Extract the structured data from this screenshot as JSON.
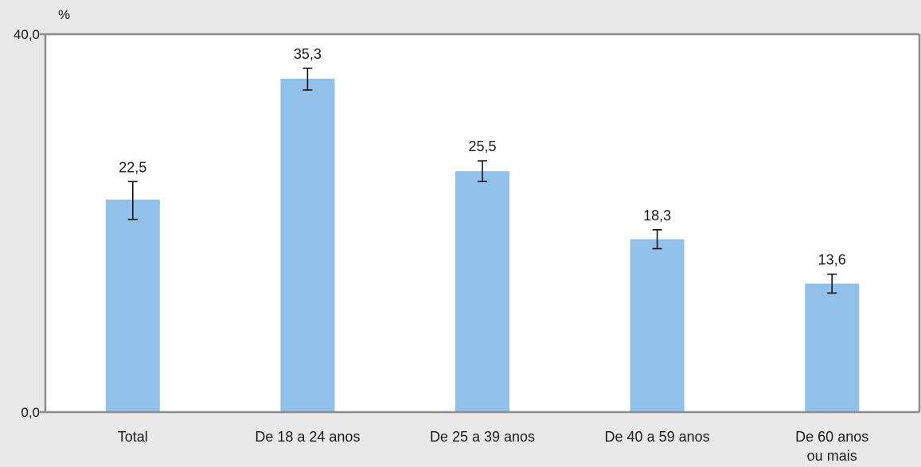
{
  "chart_data": {
    "type": "bar",
    "ylabel": "%",
    "ylim": [
      0,
      40
    ],
    "yticks": [
      "0,0",
      "40,0"
    ],
    "grid": false,
    "categories": [
      "Total",
      "De 18 a 24 anos",
      "De 25 a 39 anos",
      "De 40 a 59 anos",
      "De 60 anos ou mais"
    ],
    "category_lines": [
      [
        "Total"
      ],
      [
        "De 18 a 24 anos"
      ],
      [
        "De 25 a 39 anos"
      ],
      [
        "De 40 a 59 anos"
      ],
      [
        "De 60 anos",
        "ou mais"
      ]
    ],
    "values": [
      22.5,
      35.3,
      25.5,
      18.3,
      13.6
    ],
    "value_labels": [
      "22,5",
      "35,3",
      "25,5",
      "18,3",
      "13,6"
    ],
    "error_low": [
      20.4,
      34.1,
      24.4,
      17.3,
      12.6
    ],
    "error_high": [
      24.4,
      36.4,
      26.6,
      19.3,
      14.6
    ],
    "bar_color": "#91c0e8",
    "axis_color": "#8c8c8c",
    "plot_background": "#ffffff",
    "page_background": "#e9e9e9"
  }
}
